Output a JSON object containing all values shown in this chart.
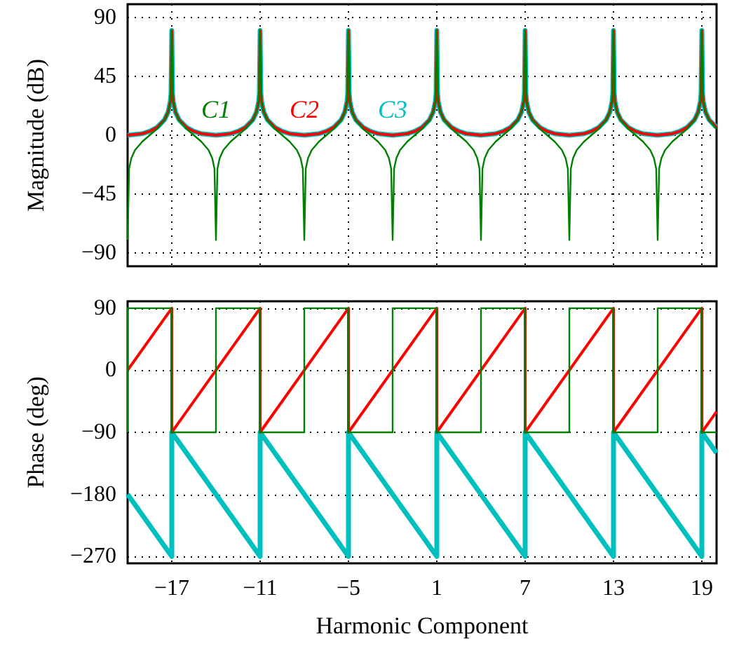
{
  "chart_data": [
    {
      "type": "line",
      "ylabel": "Magnitude (dB)",
      "xlim": [
        -20,
        20
      ],
      "xticks": [
        -17,
        -11,
        -5,
        1,
        7,
        13,
        19
      ],
      "ylim": [
        -100,
        100
      ],
      "yticks": [
        -90,
        -45,
        0,
        45,
        90
      ],
      "grid": true,
      "marker": "none",
      "tick_labels": "y",
      "series": [
        {
          "name": "C1",
          "color": "#008000",
          "x": [
            -20,
            -19.9,
            -19.75,
            -19.5,
            -19,
            -18.5,
            -18,
            -17.5,
            -17.25,
            -17.1,
            -17,
            -16.9,
            -16.75,
            -16.5,
            -16,
            -15.5,
            -15,
            -14.5,
            -14.25,
            -14.1,
            -14,
            -13.9,
            -13.75,
            -13.5,
            -13,
            -12.5,
            -12,
            -11.5,
            -11.25,
            -11.1,
            -11,
            -10.9,
            -10.75,
            -10.5,
            -10,
            -9.5,
            -9,
            -8.5,
            -8.25,
            -8.1,
            -8,
            -7.9,
            -7.75,
            -7.5,
            -7,
            -6.5,
            -6,
            -5.5,
            -5.25,
            -5.1,
            -5,
            -4.9,
            -4.75,
            -4.5,
            -4,
            -3.5,
            -3,
            -2.5,
            -2.25,
            -2.1,
            -2,
            -1.9,
            -1.75,
            -1.5,
            -1,
            -0.5,
            0,
            0.5,
            0.75,
            0.9,
            1,
            1.1,
            1.25,
            1.5,
            2,
            2.5,
            3,
            3.5,
            3.75,
            3.9,
            4,
            4.1,
            4.25,
            4.5,
            5,
            5.5,
            6,
            6.5,
            6.75,
            6.9,
            7,
            7.1,
            7.25,
            7.5,
            8,
            8.5,
            9,
            9.5,
            9.75,
            9.9,
            10,
            10.1,
            10.25,
            10.5,
            11,
            11.5,
            12,
            12.5,
            12.75,
            12.9,
            13,
            13.1,
            13.25,
            13.5,
            14,
            14.5,
            15,
            15.5,
            15.75,
            15.9,
            16,
            16.1,
            16.25,
            16.5,
            17,
            17.5,
            18,
            18.5,
            18.75,
            18.9,
            19,
            19.1,
            19.25,
            19.5,
            20
          ],
          "values": [
            -80,
            -25.6,
            -17.6,
            -11.4,
            -4.8,
            0,
            4.8,
            11.4,
            17.6,
            25.6,
            80,
            25.6,
            17.6,
            11.4,
            4.8,
            0,
            -4.8,
            -11.4,
            -17.6,
            -25.6,
            -80,
            -25.6,
            -17.6,
            -11.4,
            -4.8,
            0,
            4.8,
            11.4,
            17.6,
            25.6,
            80,
            25.6,
            17.6,
            11.4,
            4.8,
            0,
            -4.8,
            -11.4,
            -17.6,
            -25.6,
            -80,
            -25.6,
            -17.6,
            -11.4,
            -4.8,
            0,
            4.8,
            11.4,
            17.6,
            25.6,
            80,
            25.6,
            17.6,
            11.4,
            4.8,
            0,
            -4.8,
            -11.4,
            -17.6,
            -25.6,
            -80,
            -25.6,
            -17.6,
            -11.4,
            -4.8,
            0,
            4.8,
            11.4,
            17.6,
            25.6,
            80,
            25.6,
            17.6,
            11.4,
            4.8,
            0,
            -4.8,
            -11.4,
            -17.6,
            -25.6,
            -80,
            -25.6,
            -17.6,
            -11.4,
            -4.8,
            0,
            4.8,
            11.4,
            17.6,
            25.6,
            80,
            25.6,
            17.6,
            11.4,
            4.8,
            0,
            -4.8,
            -11.4,
            -17.6,
            -25.6,
            -80,
            -25.6,
            -17.6,
            -11.4,
            -4.8,
            0,
            4.8,
            11.4,
            17.6,
            25.6,
            80,
            25.6,
            17.6,
            11.4,
            4.8,
            0,
            -4.8,
            -11.4,
            -17.6,
            -25.6,
            -80,
            -25.6,
            -17.6,
            -11.4,
            -4.8,
            0,
            4.8,
            11.4,
            17.6,
            25.6,
            80,
            25.6,
            17.6,
            11.4,
            4.8
          ]
        },
        {
          "name": "C2",
          "color": "#ff0000",
          "x": [
            -20,
            -19,
            -18.5,
            -18,
            -17.5,
            -17.25,
            -17.1,
            -17.05,
            -17,
            -16.95,
            -16.9,
            -16.75,
            -16.5,
            -16,
            -15.5,
            -15,
            -14,
            -13,
            -12.5,
            -12,
            -11.5,
            -11.25,
            -11.1,
            -11.05,
            -11,
            -10.95,
            -10.9,
            -10.75,
            -10.5,
            -10,
            -9.5,
            -9,
            -8,
            -7,
            -6.5,
            -6,
            -5.5,
            -5.25,
            -5.1,
            -5.05,
            -5,
            -4.95,
            -4.9,
            -4.75,
            -4.5,
            -4,
            -3.5,
            -3,
            -2,
            -1,
            -0.5,
            0,
            0.5,
            0.75,
            0.9,
            0.95,
            1,
            1.05,
            1.1,
            1.25,
            1.5,
            2,
            2.5,
            3,
            4,
            5,
            5.5,
            6,
            6.5,
            6.75,
            6.9,
            6.95,
            7,
            7.05,
            7.1,
            7.25,
            7.5,
            8,
            8.5,
            9,
            10,
            11,
            11.5,
            12,
            12.5,
            12.75,
            12.9,
            12.95,
            13,
            13.05,
            13.1,
            13.25,
            13.5,
            14,
            14.5,
            15,
            16,
            17,
            17.5,
            18,
            18.5,
            18.75,
            18.9,
            18.95,
            19,
            19.05,
            19.1,
            19.25,
            19.5,
            20
          ],
          "values": [
            0,
            1.2,
            3.0,
            6.0,
            11.7,
            17.7,
            25.6,
            31.6,
            80,
            31.6,
            25.6,
            17.7,
            11.7,
            6.0,
            3.0,
            1.2,
            0,
            1.2,
            3.0,
            6.0,
            11.7,
            17.7,
            25.6,
            31.6,
            80,
            31.6,
            25.6,
            17.7,
            11.7,
            6.0,
            3.0,
            1.2,
            0,
            1.2,
            3.0,
            6.0,
            11.7,
            17.7,
            25.6,
            31.6,
            80,
            31.6,
            25.6,
            17.7,
            11.7,
            6.0,
            3.0,
            1.2,
            0,
            1.2,
            3.0,
            6.0,
            11.7,
            17.7,
            25.6,
            31.6,
            80,
            31.6,
            25.6,
            17.7,
            11.7,
            6.0,
            3.0,
            1.2,
            0,
            1.2,
            3.0,
            6.0,
            11.7,
            17.7,
            25.6,
            31.6,
            80,
            31.6,
            25.6,
            17.7,
            11.7,
            6.0,
            3.0,
            1.2,
            0,
            1.2,
            3.0,
            6.0,
            11.7,
            17.7,
            25.6,
            31.6,
            80,
            31.6,
            25.6,
            17.7,
            11.7,
            6.0,
            3.0,
            1.2,
            0,
            1.2,
            3.0,
            6.0,
            11.7,
            17.7,
            25.6,
            31.6,
            80,
            31.6,
            25.6,
            17.7,
            11.7,
            6.0
          ]
        },
        {
          "name": "C3",
          "color": "#00bfbf",
          "x": [
            -20,
            -19,
            -18.5,
            -18,
            -17.5,
            -17.25,
            -17.1,
            -17.05,
            -17,
            -16.95,
            -16.9,
            -16.75,
            -16.5,
            -16,
            -15.5,
            -15,
            -14,
            -13,
            -12.5,
            -12,
            -11.5,
            -11.25,
            -11.1,
            -11.05,
            -11,
            -10.95,
            -10.9,
            -10.75,
            -10.5,
            -10,
            -9.5,
            -9,
            -8,
            -7,
            -6.5,
            -6,
            -5.5,
            -5.25,
            -5.1,
            -5.05,
            -5,
            -4.95,
            -4.9,
            -4.75,
            -4.5,
            -4,
            -3.5,
            -3,
            -2,
            -1,
            -0.5,
            0,
            0.5,
            0.75,
            0.9,
            0.95,
            1,
            1.05,
            1.1,
            1.25,
            1.5,
            2,
            2.5,
            3,
            4,
            5,
            5.5,
            6,
            6.5,
            6.75,
            6.9,
            6.95,
            7,
            7.05,
            7.1,
            7.25,
            7.5,
            8,
            8.5,
            9,
            10,
            11,
            11.5,
            12,
            12.5,
            12.75,
            12.9,
            12.95,
            13,
            13.05,
            13.1,
            13.25,
            13.5,
            14,
            14.5,
            15,
            16,
            17,
            17.5,
            18,
            18.5,
            18.75,
            18.9,
            18.95,
            19,
            19.05,
            19.1,
            19.25,
            19.5,
            20
          ],
          "values": [
            0,
            1.2,
            3.0,
            6.0,
            11.7,
            17.7,
            25.6,
            31.6,
            80,
            31.6,
            25.6,
            17.7,
            11.7,
            6.0,
            3.0,
            1.2,
            0,
            1.2,
            3.0,
            6.0,
            11.7,
            17.7,
            25.6,
            31.6,
            80,
            31.6,
            25.6,
            17.7,
            11.7,
            6.0,
            3.0,
            1.2,
            0,
            1.2,
            3.0,
            6.0,
            11.7,
            17.7,
            25.6,
            31.6,
            80,
            31.6,
            25.6,
            17.7,
            11.7,
            6.0,
            3.0,
            1.2,
            0,
            1.2,
            3.0,
            6.0,
            11.7,
            17.7,
            25.6,
            31.6,
            80,
            31.6,
            25.6,
            17.7,
            11.7,
            6.0,
            3.0,
            1.2,
            0,
            1.2,
            3.0,
            6.0,
            11.7,
            17.7,
            25.6,
            31.6,
            80,
            31.6,
            25.6,
            17.7,
            11.7,
            6.0,
            3.0,
            1.2,
            0,
            1.2,
            3.0,
            6.0,
            11.7,
            17.7,
            25.6,
            31.6,
            80,
            31.6,
            25.6,
            17.7,
            11.7,
            6.0,
            3.0,
            1.2,
            0,
            1.2,
            3.0,
            6.0,
            11.7,
            17.7,
            25.6,
            31.6,
            80,
            31.6,
            25.6,
            17.7,
            11.7,
            6.0
          ]
        }
      ]
    },
    {
      "type": "line",
      "xlabel": "Harmonic Component",
      "ylabel": "Phase (deg)",
      "xlim": [
        -20,
        20
      ],
      "xticks": [
        -17,
        -11,
        -5,
        1,
        7,
        13,
        19
      ],
      "ylim": [
        -280,
        100
      ],
      "yticks": [
        -270,
        -180,
        -90,
        0,
        90
      ],
      "grid": true,
      "marker": "none",
      "series": [
        {
          "color": "#008000",
          "x": [
            -20,
            -20,
            -17,
            -17,
            -14,
            -14,
            -11,
            -11,
            -8,
            -8,
            -5,
            -5,
            -2,
            -2,
            1,
            1,
            4,
            4,
            7,
            7,
            10,
            10,
            13,
            13,
            16,
            16,
            19,
            19,
            20
          ],
          "values": [
            -90,
            90,
            90,
            -90,
            -90,
            90,
            90,
            -90,
            -90,
            90,
            90,
            -90,
            -90,
            90,
            90,
            -90,
            -90,
            90,
            90,
            -90,
            -90,
            90,
            90,
            -90,
            -90,
            90,
            90,
            -90,
            -90
          ]
        },
        {
          "color": "#ff0000",
          "x": [
            -20,
            -17,
            -17,
            -11,
            -11,
            -5,
            -5,
            1,
            1,
            7,
            7,
            13,
            13,
            19,
            19,
            20
          ],
          "values": [
            0,
            90,
            -90,
            90,
            -90,
            90,
            -90,
            90,
            -90,
            90,
            -90,
            90,
            -90,
            90,
            -90,
            -60
          ]
        },
        {
          "color": "#00bfbf",
          "x": [
            -20,
            -17,
            -17,
            -11,
            -11,
            -5,
            -5,
            1,
            1,
            7,
            7,
            13,
            13,
            19,
            19,
            20
          ],
          "values": [
            -180,
            -270,
            -90,
            -270,
            -90,
            -270,
            -90,
            -270,
            -90,
            -270,
            -90,
            -270,
            -90,
            -270,
            -90,
            -120
          ]
        }
      ]
    }
  ]
}
